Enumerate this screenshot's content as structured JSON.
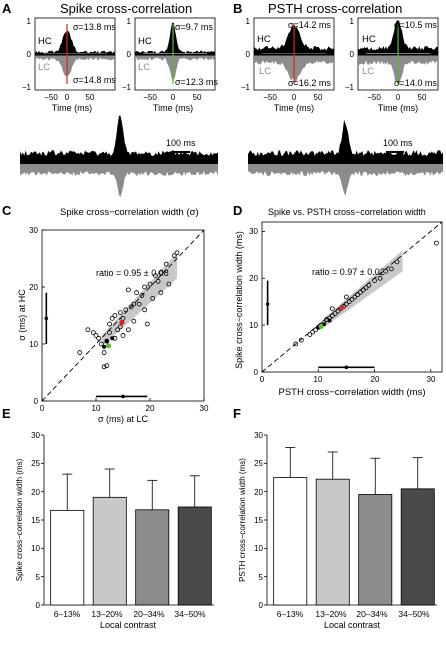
{
  "panels": {
    "A": {
      "letter": "A",
      "title": "Spike cross-correlation"
    },
    "B": {
      "letter": "B",
      "title": "PSTH cross-correlation"
    },
    "C": {
      "letter": "C",
      "title": "Spike cross−correlation width (σ)"
    },
    "D": {
      "letter": "D",
      "title": "Spike vs. PSTH cross−correlation width"
    },
    "E": {
      "letter": "E"
    },
    "F": {
      "letter": "F"
    }
  },
  "hc_label": "HC",
  "lc_label": "LC",
  "xcorr_ticks_x": [
    "−50",
    "0",
    "50"
  ],
  "xcorr_ticks_y": [
    "1",
    "0",
    "−1"
  ],
  "xcorr_xlabel": "Time (ms)",
  "subpanels": {
    "a1": {
      "sigma_hc": "σ=13.8 ms",
      "sigma_lc": "σ=14.8 ms"
    },
    "a2": {
      "sigma_hc": "σ=9.7 ms",
      "sigma_lc": "σ=12.3 ms"
    },
    "b1": {
      "sigma_hc": "σ=14.2 ms",
      "sigma_lc": "σ=16.2 ms"
    },
    "b2": {
      "sigma_hc": "σ=10.5 ms",
      "sigma_lc": "σ=14.0 ms"
    }
  },
  "colors": {
    "black": "#000000",
    "gray": "#8c8c8c",
    "red": "#d9262b",
    "green": "#5cb832",
    "band": "#c8c8c8"
  },
  "scale_bar_label": "100 ms",
  "chart_data": [
    {
      "panel": "C",
      "type": "scatter",
      "title": "Spike cross−correlation width (σ)",
      "xlabel": "σ (ms) at LC",
      "ylabel": "σ (ms) at HC",
      "xlim": [
        0,
        30
      ],
      "ylim": [
        0,
        30
      ],
      "x_ticks": [
        "0",
        "10",
        "20",
        "30"
      ],
      "y_ticks": [
        "0",
        "10",
        "20",
        "30"
      ],
      "annotation": "ratio = 0.95 ± 0.08",
      "points": [
        [
          7.0,
          8.5
        ],
        [
          8.5,
          12.5
        ],
        [
          9.5,
          12.0
        ],
        [
          10.0,
          11.5
        ],
        [
          10.5,
          11.0
        ],
        [
          11.0,
          10.0
        ],
        [
          11.5,
          8.5
        ],
        [
          11.5,
          6.0
        ],
        [
          12.0,
          6.2
        ],
        [
          12.0,
          10.5
        ],
        [
          12.5,
          12.0
        ],
        [
          12.5,
          13.5
        ],
        [
          13.0,
          14.5
        ],
        [
          13.5,
          11.0
        ],
        [
          13.5,
          15.0
        ],
        [
          14.0,
          12.5
        ],
        [
          14.5,
          13.0
        ],
        [
          14.5,
          15.5
        ],
        [
          15.0,
          14.5
        ],
        [
          15.0,
          11.5
        ],
        [
          15.5,
          16.0
        ],
        [
          16.0,
          12.5
        ],
        [
          16.5,
          16.5
        ],
        [
          17.0,
          17.0
        ],
        [
          17.0,
          14.0
        ],
        [
          17.5,
          19.0
        ],
        [
          18.0,
          17.0
        ],
        [
          18.5,
          18.5
        ],
        [
          19.0,
          16.0
        ],
        [
          19.0,
          20.0
        ],
        [
          20.0,
          20.5
        ],
        [
          20.5,
          18.0
        ],
        [
          21.0,
          22.0
        ],
        [
          21.5,
          21.0
        ],
        [
          22.0,
          19.0
        ],
        [
          22.0,
          22.5
        ],
        [
          23.0,
          24.0
        ],
        [
          23.5,
          20.5
        ],
        [
          24.5,
          25.5
        ],
        [
          25.0,
          26.0
        ],
        [
          19.5,
          13.5
        ],
        [
          16.0,
          19.5
        ]
      ],
      "highlight_red": [
        14.8,
        13.8
      ],
      "highlight_green": [
        12.3,
        9.7
      ],
      "filled_points": [
        [
          11.5,
          9.5
        ],
        [
          12.0,
          10.5
        ],
        [
          13.0,
          11.0
        ]
      ],
      "mean_x": {
        "mean": 15.0,
        "sd_low": 10.0,
        "sd_high": 19.5,
        "at_y": 0.8
      },
      "mean_y": {
        "mean": 14.5,
        "sd_low": 10.0,
        "sd_high": 19.0,
        "at_x": 0.8
      }
    },
    {
      "panel": "D",
      "type": "scatter",
      "title": "Spike vs. PSTH cross−correlation width",
      "xlabel": "PSTH cross−correlation width (ms)",
      "ylabel": "Spike cross−correlation width (ms)",
      "xlim": [
        0,
        32
      ],
      "ylim": [
        0,
        32
      ],
      "x_ticks": [
        "0",
        "10",
        "20",
        "30"
      ],
      "y_ticks": [
        "0",
        "10",
        "20",
        "30"
      ],
      "annotation": "ratio = 0.97 ± 0.02",
      "points": [
        [
          6.0,
          6.0
        ],
        [
          7.0,
          6.8
        ],
        [
          8.5,
          8.0
        ],
        [
          9.0,
          8.5
        ],
        [
          9.5,
          9.0
        ],
        [
          10.0,
          9.5
        ],
        [
          10.5,
          10.0
        ],
        [
          11.0,
          10.5
        ],
        [
          11.5,
          11.2
        ],
        [
          12.0,
          11.5
        ],
        [
          12.5,
          12.0
        ],
        [
          13.0,
          12.5
        ],
        [
          13.5,
          13.0
        ],
        [
          14.0,
          13.5
        ],
        [
          14.5,
          14.0
        ],
        [
          15.0,
          14.5
        ],
        [
          15.5,
          15.0
        ],
        [
          16.0,
          15.5
        ],
        [
          16.5,
          16.0
        ],
        [
          17.0,
          16.5
        ],
        [
          17.5,
          17.0
        ],
        [
          18.0,
          17.5
        ],
        [
          19.0,
          18.5
        ],
        [
          20.0,
          19.5
        ],
        [
          21.0,
          20.0
        ],
        [
          22.0,
          21.5
        ],
        [
          23.0,
          22.0
        ],
        [
          24.0,
          23.5
        ],
        [
          31.0,
          27.5
        ],
        [
          12.5,
          13.5
        ],
        [
          15.0,
          16.0
        ],
        [
          18.5,
          18.0
        ]
      ],
      "highlight_red": [
        14.2,
        13.8
      ],
      "highlight_green": [
        10.5,
        9.7
      ],
      "filled_points": [
        [
          10.0,
          9.5
        ],
        [
          11.0,
          10.2
        ],
        [
          12.0,
          11.0
        ]
      ],
      "mean_x": {
        "mean": 15.0,
        "sd_low": 10.0,
        "sd_high": 20.0,
        "at_y": 1.0
      },
      "mean_y": {
        "mean": 14.5,
        "sd_low": 10.0,
        "sd_high": 19.5,
        "at_x": 1.0
      }
    },
    {
      "panel": "E",
      "type": "bar",
      "categories": [
        "6–13%",
        "13–20%",
        "20–34%",
        "34–50%"
      ],
      "values": [
        16.7,
        19.0,
        16.8,
        17.3
      ],
      "errors": [
        6.4,
        5.0,
        5.2,
        5.5
      ],
      "bar_colors": [
        "#ffffff",
        "#c8c8c8",
        "#8c8c8c",
        "#4a4a4a"
      ],
      "xlabel": "Local contrast",
      "ylabel": "Spike cross−correlation width (ms)",
      "ylim": [
        0,
        30
      ],
      "y_ticks": [
        "0",
        "5",
        "10",
        "15",
        "20",
        "25",
        "30"
      ]
    },
    {
      "panel": "F",
      "type": "bar",
      "categories": [
        "6–13%",
        "13–20%",
        "20–34%",
        "34–50%"
      ],
      "values": [
        22.5,
        22.2,
        19.5,
        20.5
      ],
      "errors": [
        5.3,
        4.8,
        6.4,
        5.5
      ],
      "bar_colors": [
        "#ffffff",
        "#c8c8c8",
        "#8c8c8c",
        "#4a4a4a"
      ],
      "xlabel": "Local contrast",
      "ylabel": "PSTH cross−correlation width (ms)",
      "ylim": [
        0,
        30
      ],
      "y_ticks": [
        "0",
        "5",
        "10",
        "15",
        "20",
        "25",
        "30"
      ]
    }
  ]
}
